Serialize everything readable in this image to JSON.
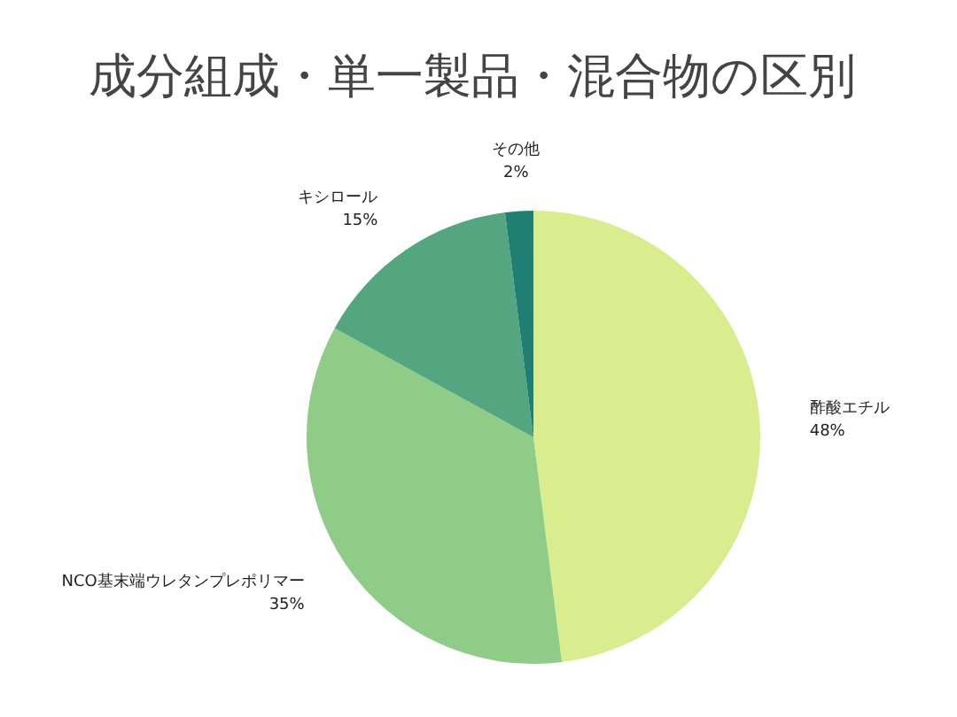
{
  "chart_data": {
    "type": "pie",
    "title": "成分組成・単一製品・混合物の区別",
    "categories": [
      "酢酸エチル",
      "NCO基末端ウレタンプレポリマー",
      "キシロール",
      "その他"
    ],
    "values": [
      48,
      35,
      15,
      2
    ],
    "colors": [
      "#d9ed8e",
      "#8fcc87",
      "#53a680",
      "#1f7f72"
    ],
    "value_labels": [
      "48%",
      "35%",
      "15%",
      "2%"
    ]
  }
}
